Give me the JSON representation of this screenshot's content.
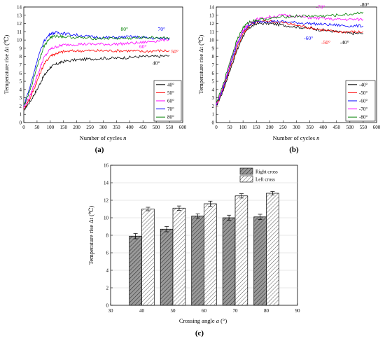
{
  "chart_data": [
    {
      "id": "a",
      "type": "line",
      "panel_label": "(a)",
      "xlabel": "Number of cycles",
      "xlabel_var": "n",
      "ylabel": "Temperature rise Δt (℃)",
      "xlim": [
        0,
        600
      ],
      "ylim": [
        0,
        14
      ],
      "xticks": [
        0,
        50,
        100,
        150,
        200,
        250,
        300,
        350,
        400,
        450,
        500,
        550,
        600
      ],
      "yticks": [
        0,
        1,
        2,
        3,
        4,
        5,
        6,
        7,
        8,
        9,
        10,
        11,
        12,
        13,
        14
      ],
      "legend_position": "bottom-right",
      "series": [
        {
          "name": "40°",
          "color": "#000000",
          "x": [
            0,
            25,
            50,
            75,
            100,
            125,
            150,
            200,
            250,
            300,
            350,
            400,
            450,
            500,
            550
          ],
          "y": [
            1.5,
            2.6,
            4.0,
            5.6,
            6.7,
            7.1,
            7.4,
            7.6,
            7.7,
            7.8,
            7.8,
            7.9,
            8.0,
            8.0,
            8.1
          ]
        },
        {
          "name": "50°",
          "color": "#ff0000",
          "x": [
            0,
            25,
            50,
            75,
            100,
            125,
            150,
            200,
            250,
            300,
            350,
            400,
            450,
            500,
            550
          ],
          "y": [
            1.7,
            3.0,
            5.0,
            7.0,
            8.1,
            8.4,
            8.6,
            8.7,
            8.7,
            8.7,
            8.7,
            8.7,
            8.6,
            8.7,
            8.7
          ]
        },
        {
          "name": "60°",
          "color": "#ff00ff",
          "x": [
            0,
            25,
            50,
            75,
            100,
            125,
            150,
            200,
            250,
            300,
            350,
            400,
            450,
            500,
            550
          ],
          "y": [
            1.8,
            3.3,
            5.6,
            7.8,
            8.9,
            9.2,
            9.4,
            9.5,
            9.5,
            9.5,
            9.5,
            9.6,
            9.7,
            9.9,
            10.1
          ]
        },
        {
          "name": "70°",
          "color": "#0000ff",
          "x": [
            0,
            25,
            50,
            75,
            100,
            125,
            150,
            200,
            250,
            300,
            350,
            400,
            450,
            500,
            550
          ],
          "y": [
            2.0,
            4.5,
            7.5,
            9.8,
            10.8,
            10.9,
            10.8,
            10.6,
            10.4,
            10.3,
            10.3,
            10.4,
            10.3,
            10.2,
            10.2
          ]
        },
        {
          "name": "80°",
          "color": "#008000",
          "x": [
            0,
            25,
            50,
            75,
            100,
            125,
            150,
            200,
            250,
            300,
            350,
            400,
            450,
            500,
            550
          ],
          "y": [
            2.0,
            4.0,
            6.8,
            9.2,
            10.3,
            10.5,
            10.4,
            10.3,
            10.2,
            10.2,
            10.2,
            10.2,
            10.3,
            10.3,
            10.3
          ]
        }
      ],
      "annotations": [
        {
          "text": "40°",
          "x": 500,
          "y": 7.0,
          "color": "#000000"
        },
        {
          "text": "50°",
          "x": 570,
          "y": 8.4,
          "color": "#ff0000"
        },
        {
          "text": "60°",
          "x": 450,
          "y": 9.0,
          "color": "#ff00ff"
        },
        {
          "text": "70°",
          "x": 520,
          "y": 11.1,
          "color": "#0000ff"
        },
        {
          "text": "80°",
          "x": 380,
          "y": 11.1,
          "color": "#008000"
        }
      ]
    },
    {
      "id": "b",
      "type": "line",
      "panel_label": "(b)",
      "xlabel": "Number of cycles",
      "xlabel_var": "n",
      "ylabel": "Temperature rise Δt (℃)",
      "xlim": [
        0,
        600
      ],
      "ylim": [
        0,
        14
      ],
      "xticks": [
        0,
        50,
        100,
        150,
        200,
        250,
        300,
        350,
        400,
        450,
        500,
        550,
        600
      ],
      "yticks": [
        0,
        1,
        2,
        3,
        4,
        5,
        6,
        7,
        8,
        9,
        10,
        11,
        12,
        13,
        14
      ],
      "legend_position": "bottom-right",
      "series": [
        {
          "name": "-40°",
          "color": "#000000",
          "x": [
            0,
            25,
            50,
            75,
            100,
            125,
            150,
            200,
            250,
            300,
            350,
            400,
            450,
            500,
            550
          ],
          "y": [
            2.0,
            3.8,
            6.2,
            8.5,
            10.5,
            11.5,
            12.0,
            12.0,
            11.8,
            11.6,
            11.4,
            11.2,
            11.0,
            10.8,
            10.8
          ]
        },
        {
          "name": "-50°",
          "color": "#ff0000",
          "x": [
            0,
            25,
            50,
            75,
            100,
            125,
            150,
            200,
            250,
            300,
            350,
            400,
            450,
            500,
            550
          ],
          "y": [
            2.1,
            4.0,
            6.5,
            8.8,
            10.8,
            11.8,
            12.2,
            12.3,
            12.1,
            11.8,
            11.5,
            11.2,
            11.0,
            11.0,
            11.0
          ]
        },
        {
          "name": "-60°",
          "color": "#0000ff",
          "x": [
            0,
            25,
            50,
            75,
            100,
            125,
            150,
            200,
            250,
            300,
            350,
            400,
            450,
            500,
            550
          ],
          "y": [
            2.1,
            4.1,
            6.8,
            9.2,
            11.0,
            11.9,
            12.2,
            12.3,
            12.2,
            12.1,
            12.0,
            11.9,
            11.8,
            11.7,
            11.7
          ]
        },
        {
          "name": "-70°",
          "color": "#ff00ff",
          "x": [
            0,
            25,
            50,
            75,
            100,
            125,
            150,
            200,
            250,
            300,
            350,
            400,
            450,
            500,
            550
          ],
          "y": [
            2.2,
            4.3,
            7.0,
            9.5,
            11.2,
            12.1,
            12.5,
            12.8,
            13.0,
            12.9,
            12.7,
            12.6,
            12.5,
            12.5,
            12.5
          ]
        },
        {
          "name": "-80°",
          "color": "#008000",
          "x": [
            0,
            25,
            50,
            75,
            100,
            125,
            150,
            200,
            250,
            300,
            350,
            400,
            450,
            500,
            550
          ],
          "y": [
            2.3,
            4.5,
            7.3,
            9.8,
            11.5,
            12.2,
            12.4,
            12.6,
            12.8,
            12.9,
            12.9,
            12.9,
            13.0,
            13.1,
            13.4
          ]
        }
      ],
      "annotations": [
        {
          "text": "-40°",
          "x": 480,
          "y": 9.5,
          "color": "#000000"
        },
        {
          "text": "-50°",
          "x": 410,
          "y": 9.5,
          "color": "#ff0000"
        },
        {
          "text": "-60°",
          "x": 345,
          "y": 10.0,
          "color": "#0000ff"
        },
        {
          "text": "-70°",
          "x": 390,
          "y": 13.8,
          "color": "#ff00ff"
        },
        {
          "text": "-80°",
          "x": 555,
          "y": 14.1,
          "color": "#000000"
        }
      ]
    },
    {
      "id": "c",
      "type": "bar",
      "panel_label": "(c)",
      "xlabel": "Crossing angle",
      "xlabel_var": "a",
      "xlabel_unit": "(°)",
      "ylabel": "Temperature rise Δt (℃)",
      "xlim": [
        30,
        90
      ],
      "ylim": [
        0,
        16
      ],
      "xticks": [
        30,
        40,
        50,
        60,
        70,
        80,
        90
      ],
      "yticks": [
        0,
        2,
        4,
        6,
        8,
        10,
        12,
        14,
        16
      ],
      "grid": true,
      "legend_position": "top-right",
      "categories": [
        40,
        50,
        60,
        70,
        80
      ],
      "series": [
        {
          "name": "Right cross",
          "values": [
            7.9,
            8.7,
            10.2,
            10.0,
            10.1
          ],
          "errors": [
            0.3,
            0.3,
            0.25,
            0.3,
            0.3
          ],
          "color": "#9a9a9a"
        },
        {
          "name": "Left cross",
          "values": [
            11.0,
            11.1,
            11.6,
            12.5,
            12.8
          ],
          "errors": [
            0.2,
            0.25,
            0.3,
            0.25,
            0.2
          ],
          "color": "#ffffff"
        }
      ]
    }
  ]
}
